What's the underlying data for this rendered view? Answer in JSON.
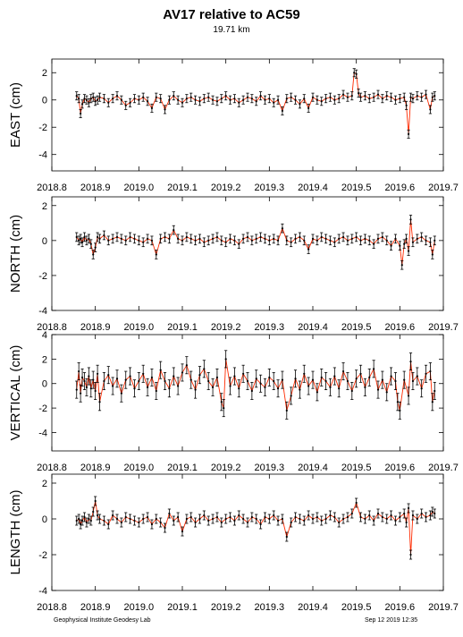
{
  "header": {
    "title": "AV17 relative to AC59",
    "subtitle": "19.71 km"
  },
  "footer": {
    "left": "Geophysical Institute Geodesy Lab",
    "right": "Sep 12 2019 12:35"
  },
  "chart_data": [
    {
      "type": "scatter",
      "ylabel": "EAST (cm)",
      "xlim": [
        2018.8,
        2019.7
      ],
      "ylim": [
        -5.2,
        3.0
      ],
      "xticks": [
        "2018.8",
        "2018.9",
        "2019.0",
        "2019.1",
        "2019.2",
        "2019.3",
        "2019.4",
        "2019.5",
        "2019.6",
        "2019.7"
      ],
      "yticks": [
        2,
        0,
        -2,
        -4
      ],
      "x": [
        2018.857,
        2018.862,
        2018.866,
        2018.87,
        2018.875,
        2018.88,
        2018.885,
        2018.89,
        2018.895,
        2018.9,
        2018.905,
        2018.91,
        2018.92,
        2018.93,
        2018.94,
        2018.95,
        2018.96,
        2018.97,
        2018.98,
        2018.99,
        2019.0,
        2019.01,
        2019.02,
        2019.03,
        2019.04,
        2019.05,
        2019.06,
        2019.07,
        2019.08,
        2019.09,
        2019.1,
        2019.11,
        2019.12,
        2019.13,
        2019.14,
        2019.15,
        2019.16,
        2019.17,
        2019.18,
        2019.19,
        2019.2,
        2019.21,
        2019.22,
        2019.23,
        2019.24,
        2019.25,
        2019.26,
        2019.27,
        2019.28,
        2019.29,
        2019.3,
        2019.31,
        2019.32,
        2019.33,
        2019.34,
        2019.35,
        2019.36,
        2019.37,
        2019.38,
        2019.39,
        2019.4,
        2019.41,
        2019.42,
        2019.43,
        2019.44,
        2019.45,
        2019.46,
        2019.47,
        2019.48,
        2019.49,
        2019.495,
        2019.5,
        2019.505,
        2019.51,
        2019.52,
        2019.53,
        2019.54,
        2019.55,
        2019.56,
        2019.57,
        2019.58,
        2019.59,
        2019.6,
        2019.61,
        2019.615,
        2019.62,
        2019.625,
        2019.63,
        2019.64,
        2019.65,
        2019.66,
        2019.67,
        2019.675,
        2019.68
      ],
      "y": [
        0.3,
        0.1,
        -1.0,
        -0.3,
        0.1,
        0.0,
        -0.2,
        0.1,
        0.2,
        -0.1,
        0.0,
        0.2,
        0.1,
        -0.2,
        0.1,
        0.3,
        0.0,
        -0.4,
        -0.2,
        0.1,
        0.0,
        0.2,
        -0.1,
        -0.6,
        0.2,
        0.1,
        -0.7,
        0.0,
        0.3,
        0.0,
        -0.2,
        0.1,
        0.2,
        0.0,
        -0.1,
        0.1,
        0.2,
        0.0,
        -0.1,
        0.1,
        0.3,
        0.0,
        0.1,
        -0.2,
        0.0,
        0.2,
        0.1,
        -0.1,
        0.3,
        0.0,
        0.1,
        -0.2,
        0.0,
        -0.8,
        0.1,
        0.2,
        0.0,
        -0.3,
        0.1,
        -0.6,
        0.2,
        0.0,
        -0.1,
        0.1,
        0.2,
        0.0,
        0.1,
        0.4,
        0.2,
        0.3,
        2.0,
        1.9,
        0.5,
        0.2,
        0.3,
        0.1,
        0.2,
        0.4,
        0.1,
        0.3,
        0.2,
        0.0,
        0.1,
        0.2,
        -0.4,
        -2.5,
        0.2,
        0.1,
        0.3,
        0.2,
        0.4,
        -0.7,
        0.2,
        0.3
      ],
      "yerr": 0.3
    },
    {
      "type": "scatter",
      "ylabel": "NORTH (cm)",
      "xlim": [
        2018.8,
        2019.7
      ],
      "ylim": [
        -4.0,
        2.5
      ],
      "xticks": [
        "2018.8",
        "2018.9",
        "2019.0",
        "2019.1",
        "2019.2",
        "2019.3",
        "2019.4",
        "2019.5",
        "2019.6",
        "2019.7"
      ],
      "yticks": [
        2,
        0,
        -2,
        -4
      ],
      "x": [
        2018.857,
        2018.862,
        2018.866,
        2018.87,
        2018.875,
        2018.88,
        2018.885,
        2018.89,
        2018.895,
        2018.9,
        2018.905,
        2018.91,
        2018.92,
        2018.93,
        2018.94,
        2018.95,
        2018.96,
        2018.97,
        2018.98,
        2018.99,
        2019.0,
        2019.01,
        2019.02,
        2019.03,
        2019.04,
        2019.05,
        2019.06,
        2019.07,
        2019.08,
        2019.09,
        2019.1,
        2019.11,
        2019.12,
        2019.13,
        2019.14,
        2019.15,
        2019.16,
        2019.17,
        2019.18,
        2019.19,
        2019.2,
        2019.21,
        2019.22,
        2019.23,
        2019.24,
        2019.25,
        2019.26,
        2019.27,
        2019.28,
        2019.29,
        2019.3,
        2019.31,
        2019.32,
        2019.33,
        2019.34,
        2019.35,
        2019.36,
        2019.37,
        2019.38,
        2019.39,
        2019.4,
        2019.41,
        2019.42,
        2019.43,
        2019.44,
        2019.45,
        2019.46,
        2019.47,
        2019.48,
        2019.49,
        2019.5,
        2019.51,
        2019.52,
        2019.53,
        2019.54,
        2019.55,
        2019.56,
        2019.57,
        2019.58,
        2019.59,
        2019.6,
        2019.605,
        2019.61,
        2019.615,
        2019.62,
        2019.625,
        2019.63,
        2019.64,
        2019.65,
        2019.66,
        2019.67,
        2019.675,
        2019.68
      ],
      "y": [
        0.2,
        0.0,
        0.1,
        -0.1,
        0.2,
        0.0,
        0.1,
        -0.2,
        -0.8,
        -0.4,
        0.2,
        0.1,
        0.3,
        0.0,
        0.1,
        0.2,
        0.1,
        0.0,
        0.2,
        0.1,
        0.0,
        -0.1,
        0.1,
        0.0,
        -0.8,
        0.1,
        0.2,
        0.1,
        0.6,
        0.1,
        0.0,
        0.2,
        0.1,
        0.0,
        0.1,
        -0.1,
        0.0,
        0.1,
        0.2,
        0.0,
        -0.1,
        0.1,
        0.0,
        -0.2,
        0.1,
        0.2,
        0.0,
        0.1,
        0.2,
        0.1,
        0.0,
        0.1,
        0.0,
        0.7,
        0.0,
        -0.1,
        0.1,
        0.2,
        0.0,
        -0.5,
        0.1,
        0.0,
        0.2,
        0.1,
        0.0,
        -0.1,
        0.1,
        0.2,
        0.0,
        0.1,
        0.2,
        0.0,
        0.1,
        0.0,
        -0.2,
        0.1,
        0.2,
        0.0,
        -0.3,
        0.1,
        -0.3,
        -1.4,
        -0.2,
        0.1,
        -0.6,
        1.2,
        -0.1,
        0.1,
        0.2,
        0.0,
        -0.1,
        -0.8,
        0.0
      ],
      "yerr": 0.25
    },
    {
      "type": "scatter",
      "ylabel": "VERTICAL (cm)",
      "xlim": [
        2018.8,
        2019.7
      ],
      "ylim": [
        -5.5,
        4.0
      ],
      "xticks": [
        "2018.8",
        "2018.9",
        "2019.0",
        "2019.1",
        "2019.2",
        "2019.3",
        "2019.4",
        "2019.5",
        "2019.6",
        "2019.7"
      ],
      "yticks": [
        4,
        2,
        0,
        -2,
        -4
      ],
      "x": [
        2018.857,
        2018.862,
        2018.866,
        2018.87,
        2018.875,
        2018.88,
        2018.885,
        2018.89,
        2018.895,
        2018.9,
        2018.905,
        2018.91,
        2018.92,
        2018.93,
        2018.94,
        2018.95,
        2018.96,
        2018.97,
        2018.98,
        2018.99,
        2019.0,
        2019.01,
        2019.02,
        2019.03,
        2019.04,
        2019.05,
        2019.06,
        2019.07,
        2019.08,
        2019.09,
        2019.1,
        2019.11,
        2019.12,
        2019.13,
        2019.14,
        2019.15,
        2019.16,
        2019.17,
        2019.18,
        2019.19,
        2019.195,
        2019.2,
        2019.21,
        2019.22,
        2019.23,
        2019.24,
        2019.25,
        2019.26,
        2019.27,
        2019.28,
        2019.29,
        2019.3,
        2019.31,
        2019.32,
        2019.33,
        2019.34,
        2019.35,
        2019.36,
        2019.37,
        2019.38,
        2019.39,
        2019.4,
        2019.41,
        2019.42,
        2019.43,
        2019.44,
        2019.45,
        2019.46,
        2019.47,
        2019.48,
        2019.49,
        2019.5,
        2019.51,
        2019.52,
        2019.53,
        2019.54,
        2019.55,
        2019.56,
        2019.57,
        2019.58,
        2019.59,
        2019.595,
        2019.6,
        2019.61,
        2019.62,
        2019.625,
        2019.63,
        2019.64,
        2019.65,
        2019.66,
        2019.67,
        2019.675,
        2019.68
      ],
      "y": [
        -0.5,
        1.0,
        -0.8,
        0.5,
        0.2,
        -0.3,
        0.6,
        -0.4,
        0.3,
        -0.6,
        0.8,
        -1.5,
        0.2,
        0.7,
        -0.2,
        0.4,
        -0.8,
        0.3,
        0.6,
        -0.4,
        0.2,
        0.8,
        -0.3,
        0.5,
        -0.6,
        1.1,
        0.2,
        -0.4,
        0.6,
        -0.2,
        0.9,
        1.5,
        0.3,
        -0.5,
        0.7,
        1.2,
        0.2,
        -0.3,
        0.5,
        -1.5,
        -2.0,
        2.0,
        -0.2,
        0.6,
        -0.4,
        0.8,
        0.2,
        -0.6,
        0.4,
        0.0,
        -0.3,
        0.5,
        0.2,
        -0.4,
        0.3,
        -2.2,
        -1.0,
        0.4,
        -0.5,
        0.8,
        -0.2,
        0.3,
        -0.7,
        0.5,
        0.2,
        -0.3,
        0.6,
        -0.4,
        1.0,
        0.2,
        -0.6,
        0.4,
        0.8,
        -0.3,
        0.5,
        1.2,
        -0.5,
        0.3,
        -0.7,
        0.6,
        0.2,
        -1.5,
        -2.2,
        0.3,
        -1.0,
        1.8,
        0.2,
        0.6,
        -0.4,
        0.8,
        1.0,
        -1.5,
        -0.6
      ],
      "yerr": 0.7
    },
    {
      "type": "scatter",
      "ylabel": "LENGTH (cm)",
      "xlim": [
        2018.8,
        2019.7
      ],
      "ylim": [
        -4.0,
        2.5
      ],
      "xticks": [
        "2018.8",
        "2018.9",
        "2019.0",
        "2019.1",
        "2019.2",
        "2019.3",
        "2019.4",
        "2019.5",
        "2019.6",
        "2019.7"
      ],
      "yticks": [
        2,
        0,
        -2,
        -4
      ],
      "x": [
        2018.857,
        2018.862,
        2018.866,
        2018.87,
        2018.875,
        2018.88,
        2018.885,
        2018.89,
        2018.895,
        2018.9,
        2018.905,
        2018.91,
        2018.92,
        2018.93,
        2018.94,
        2018.95,
        2018.96,
        2018.97,
        2018.98,
        2018.99,
        2019.0,
        2019.01,
        2019.02,
        2019.03,
        2019.04,
        2019.05,
        2019.06,
        2019.07,
        2019.08,
        2019.09,
        2019.1,
        2019.11,
        2019.12,
        2019.13,
        2019.14,
        2019.15,
        2019.16,
        2019.17,
        2019.18,
        2019.19,
        2019.2,
        2019.21,
        2019.22,
        2019.23,
        2019.24,
        2019.25,
        2019.26,
        2019.27,
        2019.28,
        2019.29,
        2019.3,
        2019.31,
        2019.32,
        2019.33,
        2019.34,
        2019.35,
        2019.36,
        2019.37,
        2019.38,
        2019.39,
        2019.4,
        2019.41,
        2019.42,
        2019.43,
        2019.44,
        2019.45,
        2019.46,
        2019.47,
        2019.48,
        2019.49,
        2019.5,
        2019.51,
        2019.52,
        2019.53,
        2019.54,
        2019.55,
        2019.56,
        2019.57,
        2019.58,
        2019.59,
        2019.6,
        2019.61,
        2019.615,
        2019.62,
        2019.625,
        2019.63,
        2019.64,
        2019.65,
        2019.66,
        2019.67,
        2019.675,
        2019.68
      ],
      "y": [
        -0.1,
        0.0,
        -0.3,
        -0.1,
        0.1,
        -0.2,
        0.0,
        -0.1,
        0.4,
        1.0,
        0.2,
        0.0,
        -0.1,
        -0.3,
        0.2,
        0.0,
        -0.2,
        0.1,
        0.0,
        -0.1,
        -0.2,
        0.0,
        0.1,
        -0.3,
        0.0,
        -0.2,
        -0.5,
        0.3,
        -0.1,
        0.1,
        -0.7,
        0.0,
        0.1,
        -0.2,
        0.0,
        0.2,
        -0.1,
        0.0,
        0.1,
        -0.2,
        0.0,
        0.1,
        -0.1,
        0.2,
        0.0,
        -0.2,
        0.1,
        0.0,
        -0.3,
        0.1,
        0.0,
        0.2,
        -0.1,
        0.0,
        -1.0,
        -0.2,
        0.1,
        0.0,
        -0.1,
        0.2,
        0.0,
        0.1,
        -0.1,
        0.0,
        0.2,
        0.1,
        -0.2,
        0.0,
        0.1,
        0.3,
        0.9,
        0.1,
        0.0,
        0.2,
        -0.1,
        0.3,
        0.1,
        0.0,
        0.2,
        -0.1,
        0.1,
        0.3,
        -0.2,
        0.6,
        -2.0,
        0.2,
        0.0,
        0.3,
        0.1,
        0.2,
        0.4,
        0.3
      ],
      "yerr": 0.25
    }
  ]
}
